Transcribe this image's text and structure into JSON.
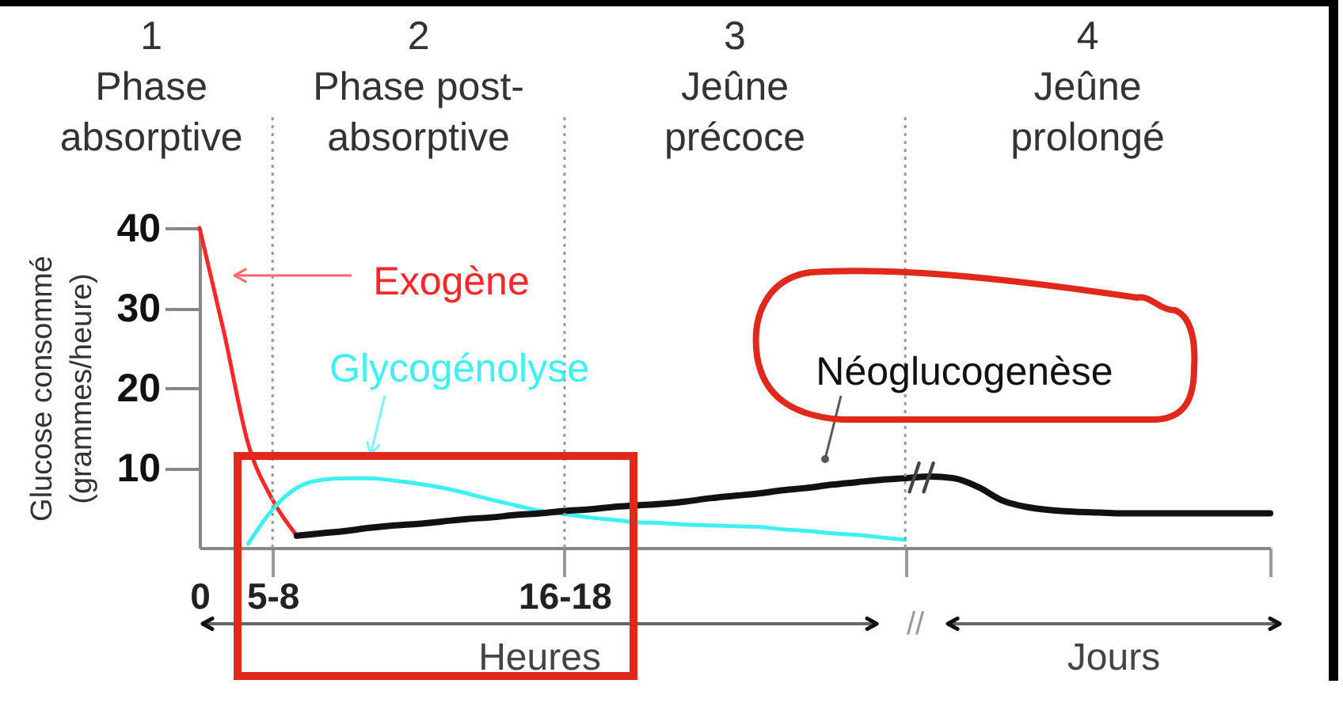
{
  "chart_data": {
    "type": "line",
    "ylabel": "Glucose consommé\n(grammes/heure)",
    "categories": [
      "0",
      null,
      null,
      "5-8",
      null,
      null,
      null,
      null,
      null,
      null,
      null,
      null,
      null,
      null,
      null,
      "16-18",
      null,
      null,
      null,
      null,
      null,
      null,
      null,
      null,
      null,
      null,
      null,
      null,
      null,
      "//",
      null,
      null,
      null,
      null,
      null,
      null,
      null,
      null,
      null,
      null,
      null,
      null,
      null,
      null,
      null
    ],
    "ylim": [
      0,
      40
    ],
    "yticks": [
      10,
      20,
      30,
      40
    ],
    "series": [
      {
        "name": "Exogène",
        "color": "#ff2626",
        "values": [
          40,
          27,
          13,
          6,
          1.5,
          null,
          null,
          null,
          null,
          null,
          null,
          null,
          null,
          null,
          null,
          null,
          null,
          null,
          null,
          null,
          null,
          null,
          null,
          null,
          null,
          null,
          null,
          null,
          null,
          null,
          null,
          null,
          null,
          null,
          null,
          null,
          null,
          null,
          null,
          null,
          null,
          null,
          null,
          null,
          null
        ]
      },
      {
        "name": "Glycogénolyse",
        "color": "#3ff0f0",
        "values": [
          null,
          null,
          0.5,
          4.8,
          7.5,
          8.5,
          8.7,
          8.7,
          8.4,
          8.0,
          7.5,
          6.8,
          6.0,
          5.3,
          4.6,
          4.2,
          3.8,
          3.5,
          3.2,
          3.1,
          2.9,
          2.8,
          2.7,
          2.6,
          2.3,
          2.1,
          1.8,
          1.6,
          1.3,
          1.0,
          null,
          null,
          null,
          null,
          null,
          null,
          null,
          null,
          null,
          null,
          null,
          null,
          null,
          null,
          null
        ]
      },
      {
        "name": "Néoglucogenèse",
        "color": "#111111",
        "values": [
          null,
          null,
          null,
          null,
          1.5,
          1.8,
          2.1,
          2.5,
          2.8,
          3.0,
          3.3,
          3.6,
          3.8,
          4.1,
          4.3,
          4.6,
          4.8,
          5.1,
          5.3,
          5.5,
          5.8,
          6.2,
          6.5,
          6.8,
          7.2,
          7.5,
          7.9,
          8.2,
          8.5,
          8.7,
          8.9,
          8.7,
          7.6,
          5.9,
          5.1,
          4.7,
          4.5,
          4.4,
          4.3,
          4.3,
          4.3,
          4.3,
          4.3,
          4.3,
          4.3
        ]
      }
    ],
    "ref_lines": [
      {
        "axis": "x",
        "value": "5-8",
        "line_style": "dotted",
        "color": "#9a9a9a"
      },
      {
        "axis": "x",
        "value": "16-18",
        "line_style": "dotted",
        "color": "#9a9a9a"
      },
      {
        "axis": "x",
        "value": "//",
        "line_style": "dotted",
        "color": "#9a9a9a"
      }
    ],
    "annotations": [
      "1\nPhase\nabsorptive",
      "2\nPhase post-\nabsorptive",
      "3\nJeûne\nprécoce",
      "4\nJeûne\nprolongé",
      "Heures",
      "Jours"
    ]
  }
}
